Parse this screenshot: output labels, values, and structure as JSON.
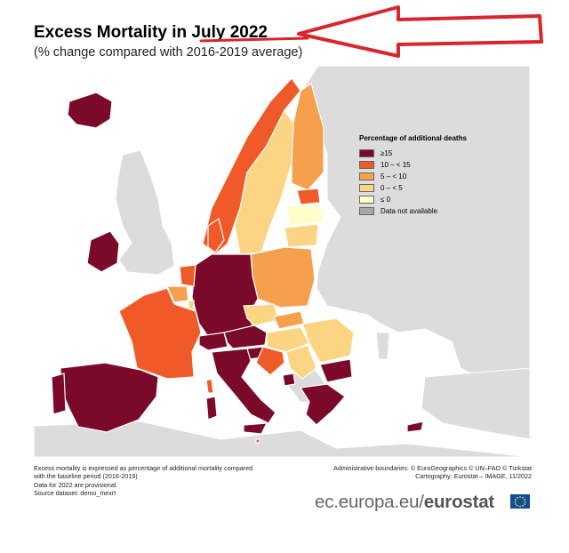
{
  "title": "Excess Mortality in July 2022",
  "subtitle": "(% change compared with 2016-2019 average)",
  "legend": {
    "title": "Percentage of additional deaths",
    "items": [
      {
        "label": "≥15",
        "color": "#7b0a2a"
      },
      {
        "label": "10 – < 15",
        "color": "#f05a28"
      },
      {
        "label": "5 – < 10",
        "color": "#f6a04d"
      },
      {
        "label": "0 – < 5",
        "color": "#fcd584"
      },
      {
        "label": "≤ 0",
        "color": "#ffffc9"
      },
      {
        "label": "Data not available",
        "color": "#a6a6a6"
      }
    ]
  },
  "map": {
    "background_color": "#ffffff",
    "non_data_land_color": "#dcdcdc",
    "border_color": "#ffffff",
    "countries": [
      {
        "name": "Iceland",
        "category": "≥15"
      },
      {
        "name": "Ireland",
        "category": "≥15"
      },
      {
        "name": "Norway",
        "category": "10 – < 15"
      },
      {
        "name": "Sweden",
        "category": "0 – < 5"
      },
      {
        "name": "Finland",
        "category": "5 – < 10"
      },
      {
        "name": "Estonia",
        "category": "10 – < 15"
      },
      {
        "name": "Latvia",
        "category": "≤ 0"
      },
      {
        "name": "Lithuania",
        "category": "0 – < 5"
      },
      {
        "name": "Denmark",
        "category": "10 – < 15"
      },
      {
        "name": "Poland",
        "category": "5 – < 10"
      },
      {
        "name": "Germany",
        "category": "≥15"
      },
      {
        "name": "Netherlands",
        "category": "10 – < 15"
      },
      {
        "name": "Belgium",
        "category": "5 – < 10"
      },
      {
        "name": "Luxembourg",
        "category": "0 – < 5"
      },
      {
        "name": "France",
        "category": "10 – < 15"
      },
      {
        "name": "Switzerland",
        "category": "≥15"
      },
      {
        "name": "Austria",
        "category": "≥15"
      },
      {
        "name": "Liechtenstein",
        "category": "≥15"
      },
      {
        "name": "Czechia",
        "category": "0 – < 5"
      },
      {
        "name": "Slovakia",
        "category": "5 – < 10"
      },
      {
        "name": "Hungary",
        "category": "0 – < 5"
      },
      {
        "name": "Slovenia",
        "category": "≥15"
      },
      {
        "name": "Croatia",
        "category": "10 – < 15"
      },
      {
        "name": "Italy",
        "category": "≥15"
      },
      {
        "name": "Malta",
        "category": "10 – < 15"
      },
      {
        "name": "Spain",
        "category": "≥15"
      },
      {
        "name": "Portugal",
        "category": "≥15"
      },
      {
        "name": "Romania",
        "category": "0 – < 5"
      },
      {
        "name": "Bulgaria",
        "category": "≥15"
      },
      {
        "name": "Greece",
        "category": "≥15"
      },
      {
        "name": "Cyprus",
        "category": "≥15"
      },
      {
        "name": "Serbia",
        "category": "0 – < 5"
      },
      {
        "name": "Montenegro",
        "category": "≥15"
      }
    ]
  },
  "notes_left": [
    "Excess mortality is expressed as percentage of additional mortality compared",
    "with the baseline period (2016-2019)",
    "Data for 2022 are provisional.",
    "Source dataset: demo_mexrt"
  ],
  "notes_right": [
    "Administrative boundaries: © EuroGeographics © UN–FAO © Turkstat",
    "Cartography: Eurostat – IMAGE, 11/2022"
  ],
  "branding": {
    "site": "ec.europa.eu/",
    "name": "eurostat"
  },
  "annotation": {
    "arrow_color": "#d9262d",
    "underline_color": "#d9262d"
  }
}
